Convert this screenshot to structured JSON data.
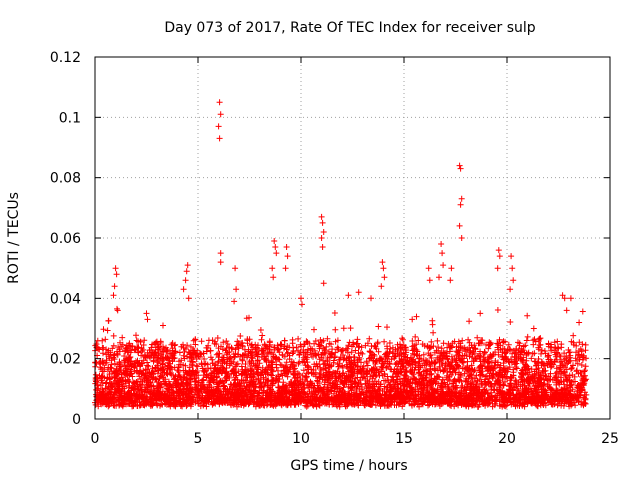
{
  "chart_data": {
    "type": "scatter",
    "title": "Day 073 of 2017, Rate Of TEC Index for receiver sulp",
    "xlabel": "GPS time / hours",
    "ylabel": "ROTI / TECUs",
    "xlim": [
      0,
      25
    ],
    "ylim": [
      0,
      0.12
    ],
    "xticks": [
      0,
      5,
      10,
      15,
      20,
      25
    ],
    "xtick_labels": [
      "0",
      "5",
      "10",
      "15",
      "20",
      "25"
    ],
    "yticks": [
      0,
      0.02,
      0.04,
      0.06,
      0.08,
      0.1,
      0.12
    ],
    "ytick_labels": [
      "0",
      "0.02",
      "0.04",
      "0.06",
      "0.08",
      "0.1",
      "0.12"
    ],
    "grid": true,
    "marker": "+",
    "color": "#ff0000",
    "series": [
      {
        "name": "ROTI",
        "note": "dense band of points 0.005-0.025 TECU/s across 0-23.8 h plus these notable peaks",
        "points": [
          [
            6.05,
            0.105
          ],
          [
            6.1,
            0.101
          ],
          [
            6.0,
            0.097
          ],
          [
            6.05,
            0.093
          ],
          [
            6.1,
            0.055
          ],
          [
            6.1,
            0.052
          ],
          [
            17.7,
            0.084
          ],
          [
            17.75,
            0.083
          ],
          [
            17.8,
            0.073
          ],
          [
            17.75,
            0.071
          ],
          [
            17.7,
            0.064
          ],
          [
            17.8,
            0.06
          ],
          [
            11.0,
            0.067
          ],
          [
            11.05,
            0.065
          ],
          [
            11.1,
            0.062
          ],
          [
            11.0,
            0.06
          ],
          [
            11.05,
            0.057
          ],
          [
            11.1,
            0.045
          ],
          [
            8.7,
            0.059
          ],
          [
            8.75,
            0.057
          ],
          [
            8.8,
            0.055
          ],
          [
            8.6,
            0.05
          ],
          [
            8.65,
            0.047
          ],
          [
            9.3,
            0.057
          ],
          [
            9.35,
            0.054
          ],
          [
            9.25,
            0.05
          ],
          [
            4.5,
            0.051
          ],
          [
            4.45,
            0.049
          ],
          [
            4.4,
            0.046
          ],
          [
            4.3,
            0.043
          ],
          [
            4.55,
            0.04
          ],
          [
            1.0,
            0.05
          ],
          [
            1.05,
            0.048
          ],
          [
            0.95,
            0.044
          ],
          [
            0.9,
            0.041
          ],
          [
            1.1,
            0.036
          ],
          [
            6.8,
            0.05
          ],
          [
            6.85,
            0.043
          ],
          [
            6.75,
            0.039
          ],
          [
            13.95,
            0.052
          ],
          [
            14.0,
            0.05
          ],
          [
            14.05,
            0.047
          ],
          [
            13.9,
            0.044
          ],
          [
            16.8,
            0.058
          ],
          [
            16.85,
            0.055
          ],
          [
            16.9,
            0.051
          ],
          [
            16.7,
            0.047
          ],
          [
            17.3,
            0.05
          ],
          [
            17.25,
            0.046
          ],
          [
            19.6,
            0.056
          ],
          [
            19.65,
            0.054
          ],
          [
            19.55,
            0.05
          ],
          [
            20.2,
            0.054
          ],
          [
            20.25,
            0.05
          ],
          [
            20.3,
            0.046
          ],
          [
            20.15,
            0.043
          ],
          [
            16.2,
            0.05
          ],
          [
            16.25,
            0.046
          ],
          [
            22.7,
            0.041
          ],
          [
            22.8,
            0.04
          ],
          [
            23.1,
            0.04
          ],
          [
            22.9,
            0.036
          ],
          [
            2.5,
            0.035
          ],
          [
            2.55,
            0.033
          ],
          [
            3.3,
            0.031
          ],
          [
            10.0,
            0.04
          ],
          [
            10.05,
            0.038
          ],
          [
            12.3,
            0.041
          ],
          [
            12.8,
            0.042
          ],
          [
            13.4,
            0.04
          ],
          [
            15.4,
            0.033
          ],
          [
            18.7,
            0.035
          ],
          [
            21.3,
            0.03
          ],
          [
            23.5,
            0.032
          ]
        ]
      }
    ]
  }
}
